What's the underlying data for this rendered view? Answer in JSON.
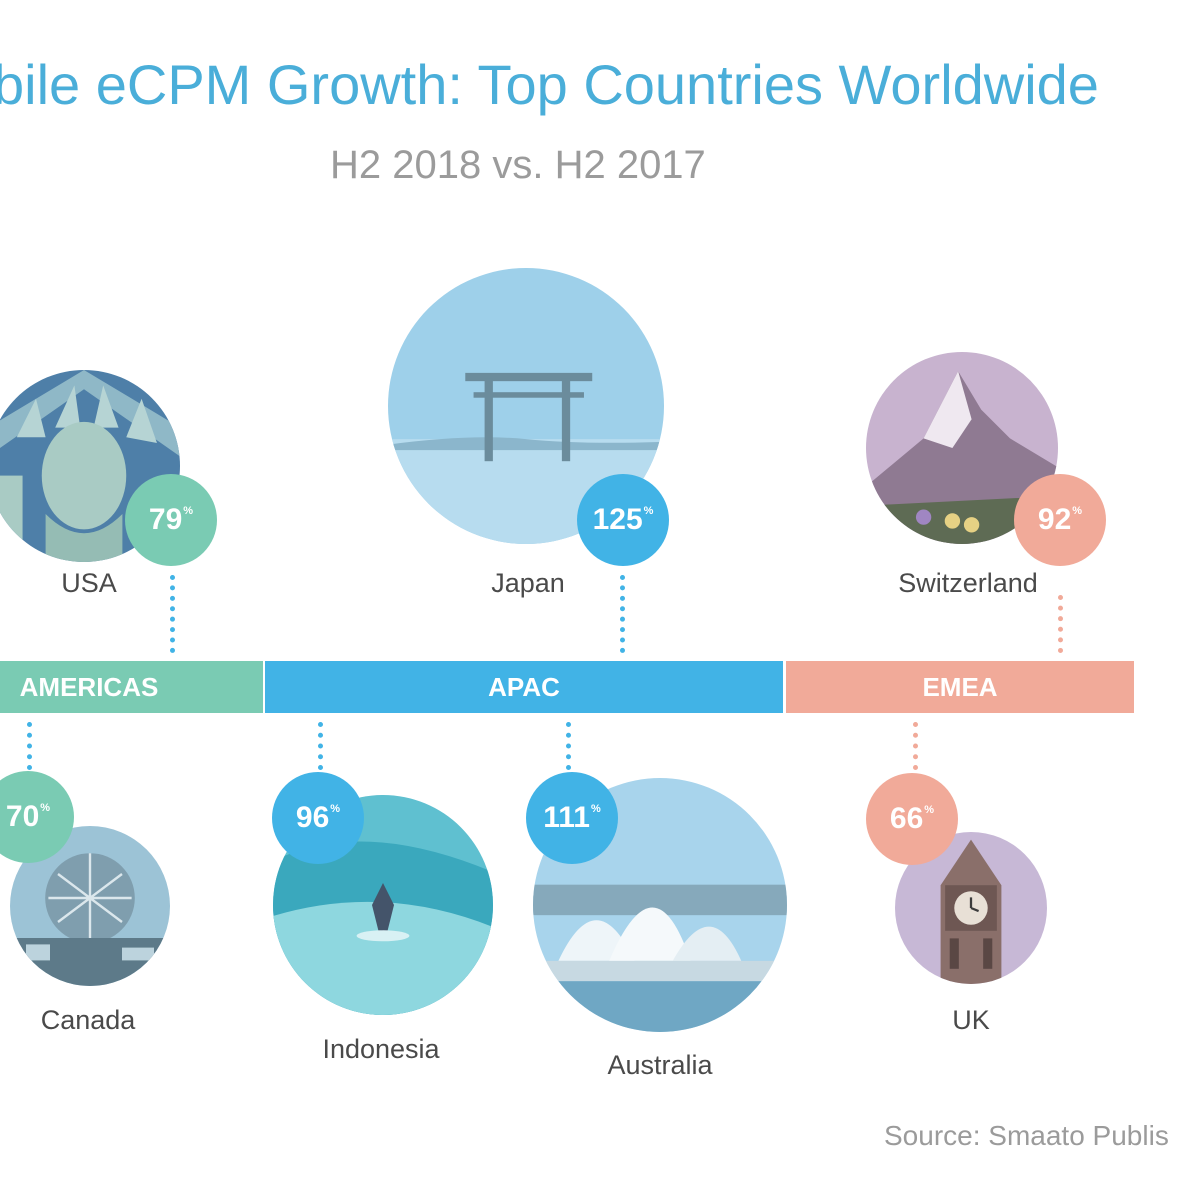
{
  "title": "bile eCPM Growth: Top Countries Worldwide",
  "subtitle": "H2 2018 vs. H2 2017",
  "source": "Source: Smaato Publis",
  "colors": {
    "americas": "#7acbb3",
    "apac": "#41b3e6",
    "emea": "#f1aa99",
    "title": "#4aaed9",
    "text": "#4a4a4a"
  },
  "regions": [
    {
      "name": "AMERICAS",
      "color": "#7acbb3"
    },
    {
      "name": "APAC",
      "color": "#41b3e6"
    },
    {
      "name": "EMEA",
      "color": "#f1aa99"
    }
  ],
  "chart_data": {
    "type": "bar",
    "title": "bile eCPM Growth: Top Countries Worldwide",
    "subtitle": "H2 2018 vs. H2 2017",
    "unit": "%",
    "categories": [
      "USA",
      "Canada",
      "Japan",
      "Indonesia",
      "Australia",
      "Switzerland",
      "UK"
    ],
    "values": [
      79,
      70,
      125,
      96,
      111,
      92,
      66
    ],
    "regions": [
      "AMERICAS",
      "AMERICAS",
      "APAC",
      "APAC",
      "APAC",
      "EMEA",
      "EMEA"
    ],
    "badge_labels": [
      "79",
      "70",
      "125",
      "96",
      "111",
      "92",
      "66"
    ],
    "badge_suffix": "%"
  }
}
